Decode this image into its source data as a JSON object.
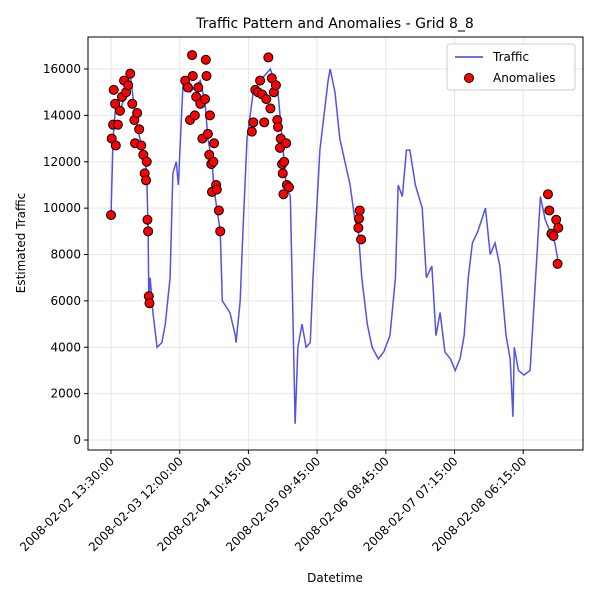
{
  "chart_data": {
    "type": "line",
    "title": "Traffic Pattern and Anomalies - Grid 8_8",
    "x_label": "Datetime",
    "y_label": "Estimated Traffic",
    "xlim": [
      -33.5,
      687
    ],
    "ylim": [
      -430,
      17380
    ],
    "xticks": [
      {
        "value": 0,
        "label": "2008-02-02 13:30:00"
      },
      {
        "value": 100,
        "label": "2008-02-03 12:00:00"
      },
      {
        "value": 200,
        "label": "2008-02-04 10:45:00"
      },
      {
        "value": 300,
        "label": "2008-02-05 09:45:00"
      },
      {
        "value": 400,
        "label": "2008-02-06 08:45:00"
      },
      {
        "value": 500,
        "label": "2008-02-07 07:15:00"
      },
      {
        "value": 600,
        "label": "2008-02-08 06:15:00"
      }
    ],
    "yticks": [
      0,
      2000,
      4000,
      6000,
      8000,
      10000,
      12000,
      14000,
      16000
    ],
    "grid": true,
    "legend_position": "upper-right",
    "series": [
      {
        "name": "Traffic",
        "type": "line",
        "color": "#3f3fe6",
        "x": [
          0,
          3,
          7,
          13,
          20,
          28,
          35,
          42,
          47,
          52,
          54,
          55,
          57,
          61,
          67,
          74,
          79,
          86,
          90,
          95,
          98,
          105,
          115,
          130,
          137,
          141,
          147,
          150,
          159,
          162,
          173,
          181,
          182,
          188,
          192,
          198,
          207,
          217,
          232,
          243,
          249,
          255,
          261,
          265,
          268,
          272,
          278,
          284,
          290,
          294,
          304,
          310,
          316,
          319,
          326,
          333,
          348,
          355,
          360,
          365,
          373,
          380,
          389,
          397,
          406,
          414,
          418,
          424,
          430,
          435,
          443,
          453,
          459,
          467,
          473,
          479,
          486,
          494,
          501,
          508,
          514,
          520,
          526,
          534,
          545,
          552,
          559,
          566,
          575,
          581,
          585,
          587,
          593,
          601,
          610,
          618,
          625,
          632,
          639,
          646,
          652
        ],
        "values": [
          9700,
          13000,
          14500,
          14200,
          14800,
          15800,
          14000,
          13000,
          12500,
          11500,
          9000,
          6000,
          7000,
          5500,
          4000,
          4200,
          5000,
          7000,
          11500,
          12000,
          11000,
          15500,
          15000,
          15500,
          14500,
          13000,
          12000,
          10800,
          9000,
          6000,
          5500,
          4500,
          4200,
          6000,
          9000,
          13000,
          15000,
          15500,
          16000,
          15000,
          13000,
          11000,
          10500,
          5000,
          700,
          4000,
          5000,
          4000,
          4200,
          7000,
          12500,
          14000,
          15500,
          16000,
          15000,
          13000,
          11000,
          9500,
          9000,
          7000,
          5000,
          4000,
          3500,
          3800,
          4500,
          7000,
          11000,
          10500,
          12500,
          12500,
          11000,
          10000,
          7000,
          7500,
          4500,
          5500,
          3800,
          3500,
          3000,
          3500,
          4500,
          7000,
          8500,
          9000,
          10000,
          8000,
          8500,
          7500,
          4500,
          3500,
          1000,
          4000,
          3000,
          2800,
          3000,
          7000,
          10500,
          9500,
          9000,
          8500,
          7500
        ]
      },
      {
        "name": "Anomalies",
        "type": "scatter",
        "color": "#ff0000",
        "x": [
          0,
          1,
          3,
          4,
          6,
          7,
          10,
          13,
          16,
          19,
          22,
          25,
          28,
          31,
          34,
          35,
          38,
          41,
          44,
          47,
          49,
          51,
          52,
          53,
          54,
          55,
          56,
          108,
          112,
          115,
          118,
          119,
          122,
          124,
          127,
          130,
          133,
          137,
          138,
          139,
          141,
          143,
          144,
          146,
          147,
          149,
          150,
          153,
          154,
          157,
          159,
          205,
          207,
          210,
          214,
          217,
          220,
          223,
          226,
          229,
          232,
          234,
          237,
          240,
          242,
          243,
          246,
          247,
          249,
          250,
          251,
          252,
          255,
          256,
          259,
          360,
          361,
          362,
          364,
          636,
          638,
          641,
          644,
          648,
          650,
          651
        ],
        "values": [
          9700,
          13000,
          13600,
          15100,
          14500,
          12700,
          13600,
          14200,
          14800,
          15500,
          15000,
          15300,
          15800,
          14500,
          13800,
          12800,
          14100,
          13400,
          12700,
          12300,
          11500,
          11200,
          12000,
          9500,
          9000,
          6200,
          5900,
          15500,
          15200,
          13800,
          16600,
          15700,
          14000,
          14800,
          15200,
          14500,
          13000,
          14700,
          16400,
          15700,
          13200,
          12300,
          14000,
          11900,
          10700,
          12000,
          12800,
          11000,
          10800,
          9900,
          9000,
          13300,
          13700,
          15100,
          15000,
          15500,
          14900,
          13700,
          14700,
          16500,
          14300,
          15600,
          15000,
          15300,
          13800,
          13500,
          12600,
          13000,
          11900,
          11500,
          10600,
          12000,
          12800,
          11000,
          10900,
          9150,
          9550,
          9900,
          8650,
          10600,
          9900,
          8900,
          8800,
          9500,
          7600,
          9150
        ]
      }
    ]
  }
}
